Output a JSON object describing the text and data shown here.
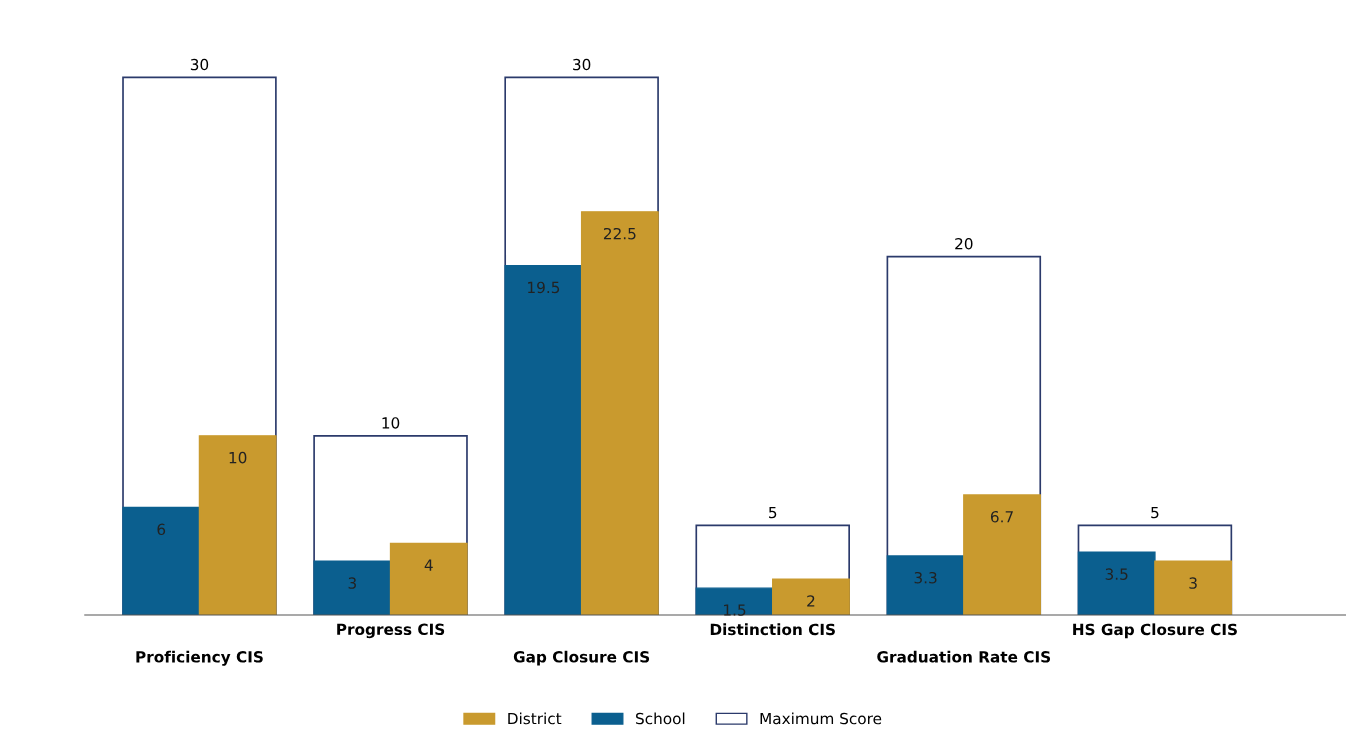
{
  "chart_data": {
    "type": "bar",
    "categories": [
      "Proficiency CIS",
      "Progress CIS",
      "Gap Closure CIS",
      "Distinction CIS",
      "Graduation Rate CIS",
      "HS Gap Closure CIS"
    ],
    "series": [
      {
        "name": "District",
        "color": "#c99a2e",
        "values": [
          10,
          4,
          22.5,
          2,
          6.7,
          3
        ]
      },
      {
        "name": "School",
        "color": "#0b5f8f",
        "values": [
          6,
          3,
          19.5,
          1.5,
          3.3,
          3.5
        ]
      },
      {
        "name": "Maximum Score",
        "color": "#ffffff",
        "values": [
          30,
          10,
          30,
          5,
          20,
          5
        ]
      }
    ],
    "data_labels": true,
    "legend": "bottom",
    "grid": false
  }
}
